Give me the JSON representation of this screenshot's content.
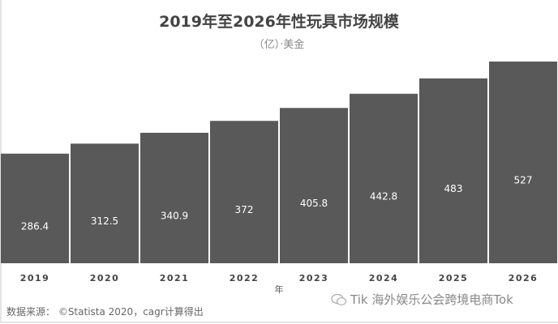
{
  "chart_data": {
    "type": "bar",
    "title": "2019年至2026年性玩具市场规模",
    "subtitle": "（亿）·美金",
    "xlabel": "年",
    "ylabel": "",
    "categories": [
      "2019",
      "2020",
      "2021",
      "2022",
      "2023",
      "2024",
      "2025",
      "2026"
    ],
    "values": [
      286.4,
      312.5,
      340.9,
      372,
      405.8,
      442.8,
      483,
      527
    ],
    "value_labels": [
      "286.4",
      "312.5",
      "340.9",
      "372",
      "405.8",
      "442.8",
      "483",
      "527"
    ],
    "ylim": [
      0,
      527
    ],
    "grid": false,
    "legend": "none",
    "bar_color": "#595959",
    "label_color": "#ffffff"
  },
  "source": "数据来源：  ©Statista 2020，cagr计算得出",
  "watermark": {
    "icon": "wechat-icon",
    "text": "Tik 海外娱乐公会跨境电商Tok"
  }
}
